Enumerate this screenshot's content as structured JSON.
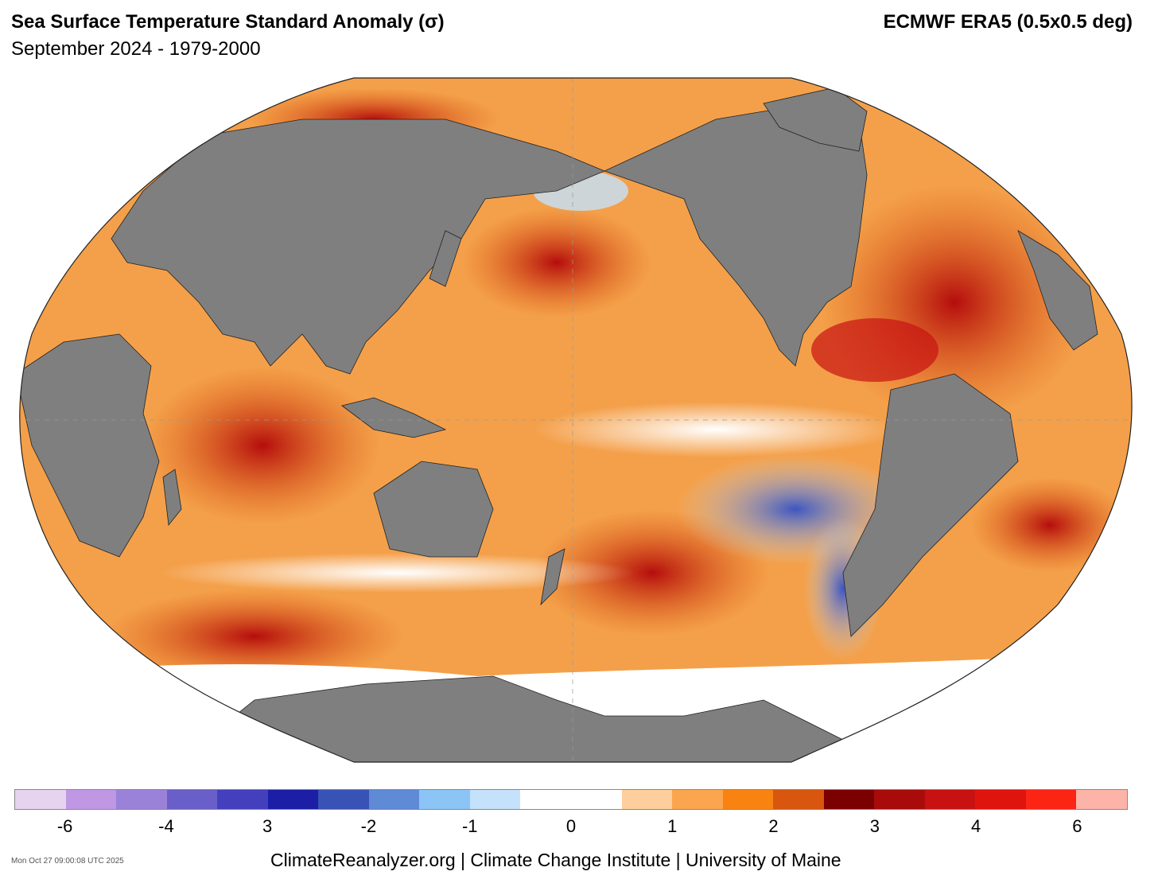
{
  "header": {
    "title": "Sea Surface Temperature Standard Anomaly (σ)",
    "subtitle": "September 2024 - 1979-2000",
    "source": "ECMWF ERA5 (0.5x0.5 deg)"
  },
  "map": {
    "projection": "Robinson (Pacific-centered)",
    "land_color": "#7f7f7f",
    "ocean_base_color": "#f4a04a",
    "sea_ice_color": "#ffffff"
  },
  "colorbar": {
    "colors": [
      "#e5d3f0",
      "#bf97e2",
      "#9a82d8",
      "#6a5fc9",
      "#4440bd",
      "#1c1ea6",
      "#3852b5",
      "#5f8ad6",
      "#8cc4f5",
      "#c4e2fb",
      "#ffffff",
      "#ffffff",
      "#fecf9c",
      "#fba54e",
      "#f98311",
      "#d9560e",
      "#7b0000",
      "#a90b0b",
      "#c81212",
      "#e0140e",
      "#fc2414",
      "#fcb4a8"
    ],
    "tick_labels": [
      "-6",
      "-4",
      "3",
      "-2",
      "-1",
      "0",
      "1",
      "2",
      "3",
      "4",
      "6"
    ]
  },
  "footer": {
    "credit": "ClimateReanalyzer.org | Climate Change Institute | University of Maine",
    "timestamp": "Mon Oct 27 09:00:08 UTC 2025"
  }
}
